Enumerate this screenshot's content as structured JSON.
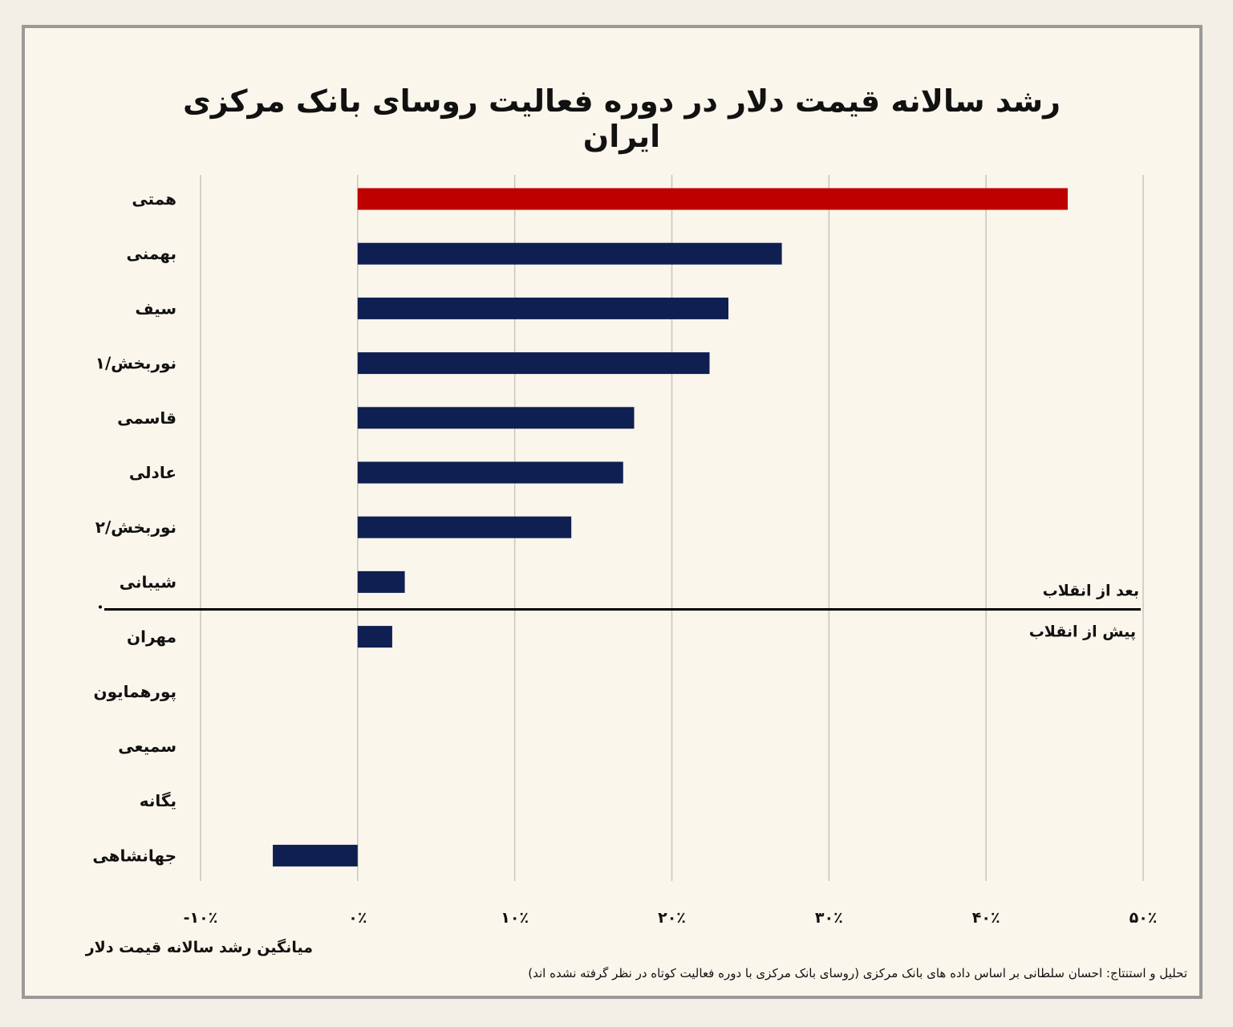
{
  "colors": {
    "highlight": "#bf0000",
    "bar": "#0f1f52",
    "grid": "#c9c5bc",
    "separator": "#000000"
  },
  "chart_data": {
    "type": "bar",
    "orientation": "horizontal",
    "title": "رشد سالانه قیمت دلار در دوره فعالیت روسای بانک مرکزی ایران",
    "xlabel": "میانگین رشد سالانه قیمت دلار",
    "xlim": [
      -10,
      50
    ],
    "xticks": [
      -10,
      0,
      10,
      20,
      30,
      40,
      50
    ],
    "xtick_labels": [
      "-۱۰٪",
      "۰٪",
      "۱۰٪",
      "۲۰٪",
      "۳۰٪",
      "۴۰٪",
      "۵۰٪"
    ],
    "grid": true,
    "categories": [
      "همتی",
      "بهمنی",
      "سیف",
      "نوربخش/۱",
      "قاسمی",
      "عادلی",
      "نوربخش/۲",
      "شیبانی",
      "مهران",
      "پورهمایون",
      "سمیعی",
      "یگانه",
      "جهانشاهی"
    ],
    "values": [
      45.2,
      27.0,
      23.6,
      22.4,
      17.6,
      16.9,
      13.6,
      3.0,
      2.2,
      0,
      0,
      0,
      -5.4
    ],
    "highlight": [
      "همتی"
    ],
    "separator": {
      "after_index": 7,
      "label_above": "بعد از انقلاب",
      "label_below": "پیش از انقلاب"
    }
  },
  "credit": "تحلیل و استنتاج: احسان سلطانی بر اساس داده های بانک مرکزی (روسای بانک مرکزی با دوره فعالیت کوتاه در نظر گرفته نشده اند)"
}
